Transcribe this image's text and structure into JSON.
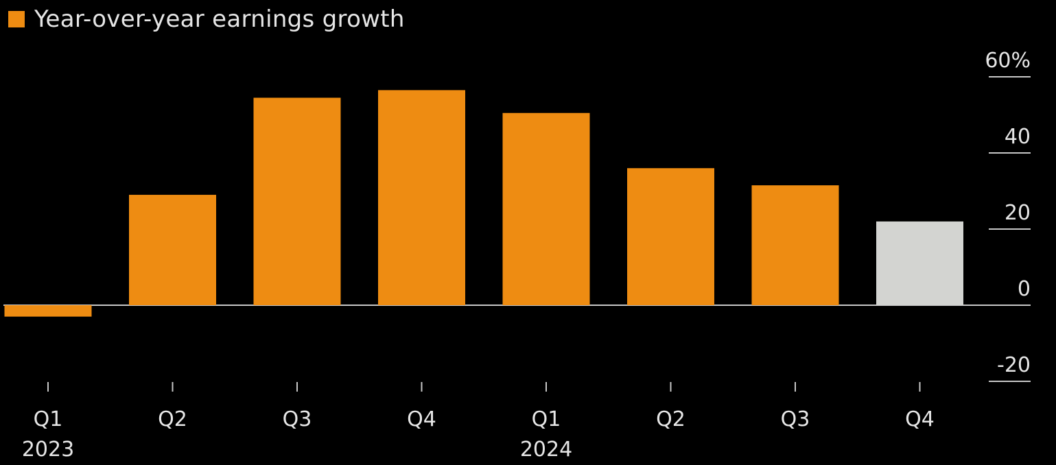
{
  "chart_data": {
    "type": "bar",
    "title": "",
    "legend": [
      {
        "label": "Year-over-year earnings growth",
        "color": "#ee8c12"
      }
    ],
    "categories": [
      "Q1",
      "Q2",
      "Q3",
      "Q4",
      "Q1",
      "Q2",
      "Q3",
      "Q4"
    ],
    "year_labels": [
      {
        "label": "2023",
        "category_index": 0
      },
      {
        "label": "2024",
        "category_index": 4
      }
    ],
    "values": [
      -3,
      29,
      54.5,
      56.5,
      50.5,
      36,
      31.5,
      22
    ],
    "bar_colors": [
      "#ee8c12",
      "#ee8c12",
      "#ee8c12",
      "#ee8c12",
      "#ee8c12",
      "#ee8c12",
      "#ee8c12",
      "#d3d4d1"
    ],
    "estimate_index": 7,
    "yticks": [
      60,
      40,
      20,
      0,
      -20
    ],
    "ytick_labels": [
      "60%",
      "40",
      "20",
      "0",
      "-20"
    ],
    "ylim": [
      -20,
      60
    ],
    "xlabel": "",
    "ylabel": "",
    "grid": false
  },
  "colors": {
    "background": "#000000",
    "primary": "#ee8c12",
    "estimate": "#d3d4d1",
    "text": "#e6e6e6",
    "axis": "#c8c8c8"
  }
}
